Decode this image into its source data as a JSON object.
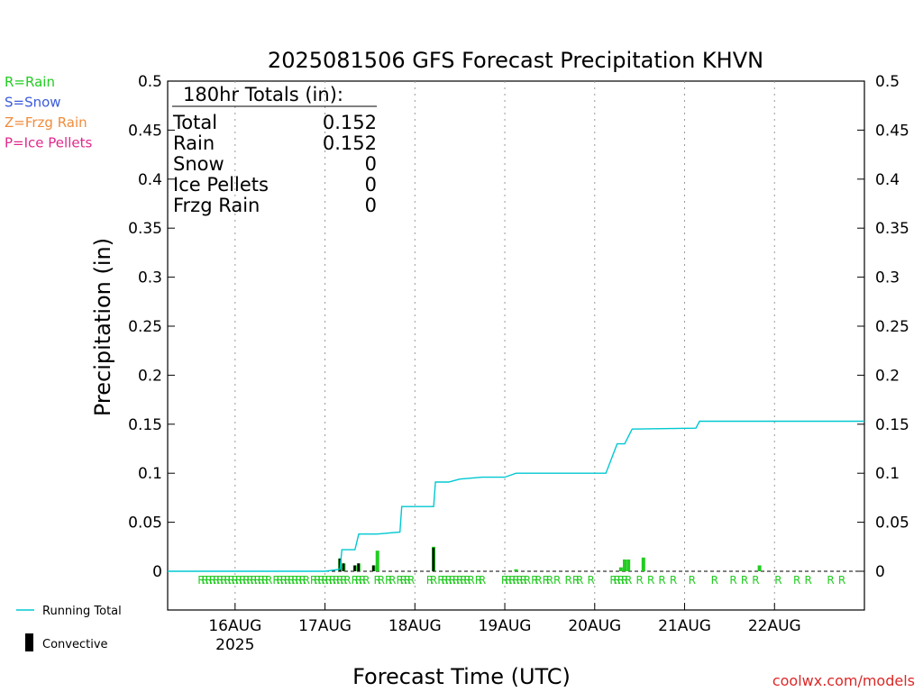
{
  "chart_data": {
    "type": "bar",
    "title": "2025081506 GFS Forecast Precipitation KHVN",
    "ylabel": "Precipitation (in)",
    "xlabel": "Forecast Time (UTC)",
    "ylim": [
      0,
      0.5
    ],
    "yticks": [
      0,
      0.05,
      0.1,
      0.15,
      0.2,
      0.25,
      0.3,
      0.35,
      0.4,
      0.45,
      0.5
    ],
    "ytick_labels": [
      "0",
      "0.05",
      "0.1",
      "0.15",
      "0.2",
      "0.25",
      "0.3",
      "0.35",
      "0.4",
      "0.45",
      "0.5"
    ],
    "xlim_hours": [
      0,
      186
    ],
    "xticks": [
      {
        "hour": 18,
        "label": "16AUG",
        "sublabel": "2025"
      },
      {
        "hour": 42,
        "label": "17AUG"
      },
      {
        "hour": 66,
        "label": "18AUG"
      },
      {
        "hour": 90,
        "label": "19AUG"
      },
      {
        "hour": 114,
        "label": "20AUG"
      },
      {
        "hour": 138,
        "label": "21AUG"
      },
      {
        "hour": 162,
        "label": "22AUG"
      }
    ],
    "ptype_legend": [
      {
        "label": "R=Rain",
        "color": "#22cc22"
      },
      {
        "label": "S=Snow",
        "color": "#3b5bdb"
      },
      {
        "label": "Z=Frzg Rain",
        "color": "#f08c3c"
      },
      {
        "label": "P=Ice Pellets",
        "color": "#e0288c"
      }
    ],
    "series_legend": [
      {
        "label": "Running Total",
        "color": "#00c8d2",
        "kind": "line"
      },
      {
        "label": "Convective",
        "color": "#000000",
        "kind": "bar"
      }
    ],
    "totals": {
      "header": "180hr Totals (in):",
      "rows": [
        {
          "label": "Total",
          "value": "0.152"
        },
        {
          "label": "Rain",
          "value": "0.152"
        },
        {
          "label": "Snow",
          "value": "0"
        },
        {
          "label": "Ice Pellets",
          "value": "0"
        },
        {
          "label": "Frzg Rain",
          "value": "0"
        }
      ]
    },
    "running_total": {
      "x_hours": [
        0,
        42,
        46,
        46.5,
        50,
        51,
        55,
        56,
        62,
        62.5,
        71,
        71.5,
        75,
        78,
        84,
        90,
        93,
        96,
        117,
        120,
        122,
        124,
        141,
        142,
        186
      ],
      "y": [
        0,
        0,
        0.002,
        0.022,
        0.022,
        0.038,
        0.038,
        0.038,
        0.04,
        0.066,
        0.066,
        0.091,
        0.091,
        0.094,
        0.096,
        0.096,
        0.1,
        0.1,
        0.1,
        0.13,
        0.13,
        0.145,
        0.146,
        0.153,
        0.153
      ]
    },
    "precip_bars": {
      "x_hours": [
        46,
        47,
        50,
        51,
        55,
        56,
        71,
        93,
        121,
        122,
        123,
        127,
        158
      ],
      "y": [
        0.013,
        0.008,
        0.006,
        0.008,
        0.006,
        0.021,
        0.025,
        0.002,
        0.004,
        0.012,
        0.012,
        0.014,
        0.006
      ],
      "convective": [
        0.013,
        0.008,
        0.006,
        0.008,
        0.006,
        0.0,
        0.024,
        0.0,
        0.0,
        0.0,
        0.0,
        0.0,
        0.0
      ]
    },
    "ptype_markers": {
      "symbol": "R",
      "x_hours": [
        9,
        10,
        11,
        12,
        13,
        14,
        15,
        16,
        17,
        18,
        19,
        20,
        21,
        22,
        23,
        24,
        25,
        26,
        27,
        29,
        30,
        31,
        32,
        33,
        34,
        35,
        36,
        37,
        39,
        40,
        41,
        42,
        43,
        44,
        45,
        46,
        47,
        48,
        50,
        51,
        52,
        53,
        56,
        57,
        59,
        60,
        62,
        63,
        64,
        65,
        70,
        71,
        73,
        74,
        75,
        76,
        77,
        78,
        79,
        80,
        81,
        83,
        84,
        90,
        91,
        92,
        93,
        94,
        95,
        96,
        98,
        99,
        101,
        102,
        104,
        107,
        109,
        110,
        113,
        119,
        120,
        121,
        122,
        123,
        126,
        129,
        132,
        135,
        140,
        146,
        151,
        154,
        157,
        163,
        168,
        171,
        177,
        180
      ]
    },
    "credit": "coolwx.com/models"
  }
}
